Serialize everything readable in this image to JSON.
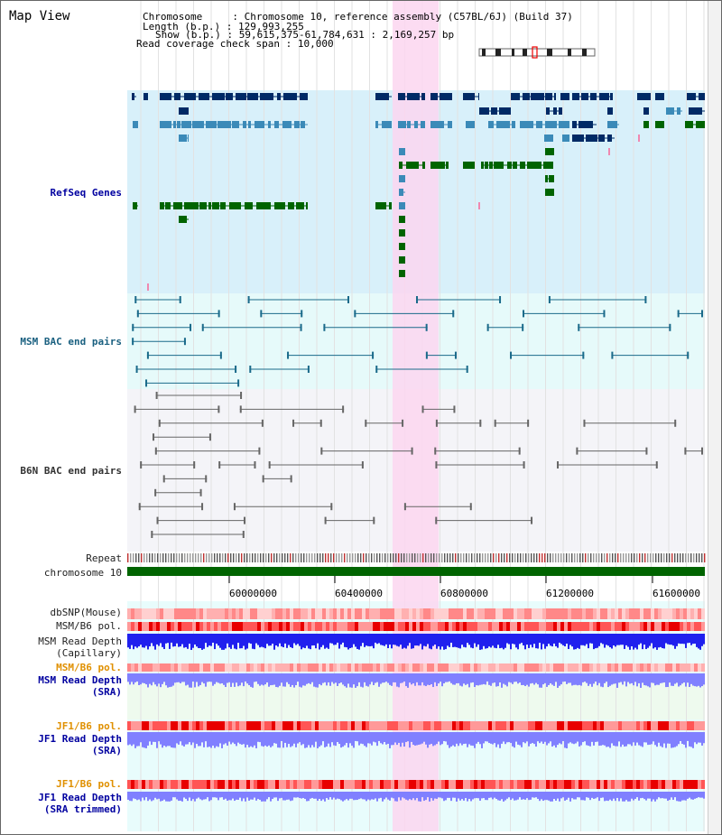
{
  "header": {
    "title": "Map View",
    "chromosome_key": "Chromosome",
    "chromosome_value": "Chromosome 10, reference assembly (C57BL/6J) (Build 37)",
    "length_key": "Length (b.p.)",
    "length_value": "129,993,255",
    "show_key": "Show (b.p.)",
    "show_value": "59,615,375-61,784,631 : 2,169,257 bp",
    "coverage_key": "Read coverage check span",
    "coverage_value": "10,000"
  },
  "tracks": {
    "refseq": "RefSeq Genes",
    "msm_bac": "MSM BAC end pairs",
    "b6n_bac": "B6N BAC end pairs",
    "repeat": "Repeat",
    "chromosome": "chromosome 10",
    "dbsnp": "dbSNP(Mouse)",
    "msm_b6_pol": "MSM/B6 pol.",
    "msm_depth_cap_1": "MSM Read Depth",
    "msm_depth_cap_2": "(Capillary)",
    "msm_b6_pol_2": "MSM/B6 pol.",
    "msm_depth_sra_1": "MSM Read Depth",
    "msm_depth_sra_2": "(SRA)",
    "jf1_b6_pol": "JF1/B6 pol.",
    "jf1_depth_sra_1": "JF1 Read Depth",
    "jf1_depth_sra_2": "(SRA)",
    "jf1_b6_pol_2": "JF1/B6 pol.",
    "jf1_depth_trim_1": "JF1 Read Depth",
    "jf1_depth_trim_2": "(SRA trimmed)"
  },
  "axis": {
    "ticks": [
      "60000000",
      "60400000",
      "60800000",
      "61200000",
      "61600000"
    ]
  },
  "colors": {
    "highlight": "#fbd6f0",
    "refseq_bg": "#d8f0fa",
    "msm_bg": "#e6fafa",
    "b6n_bg": "#f4f4f8",
    "navy": "#002a66",
    "steel": "#3b8ab8",
    "green": "#006400",
    "chromosome": "#006400",
    "depth_blue": "#2020ee",
    "depth_light": "#8080ff"
  }
}
